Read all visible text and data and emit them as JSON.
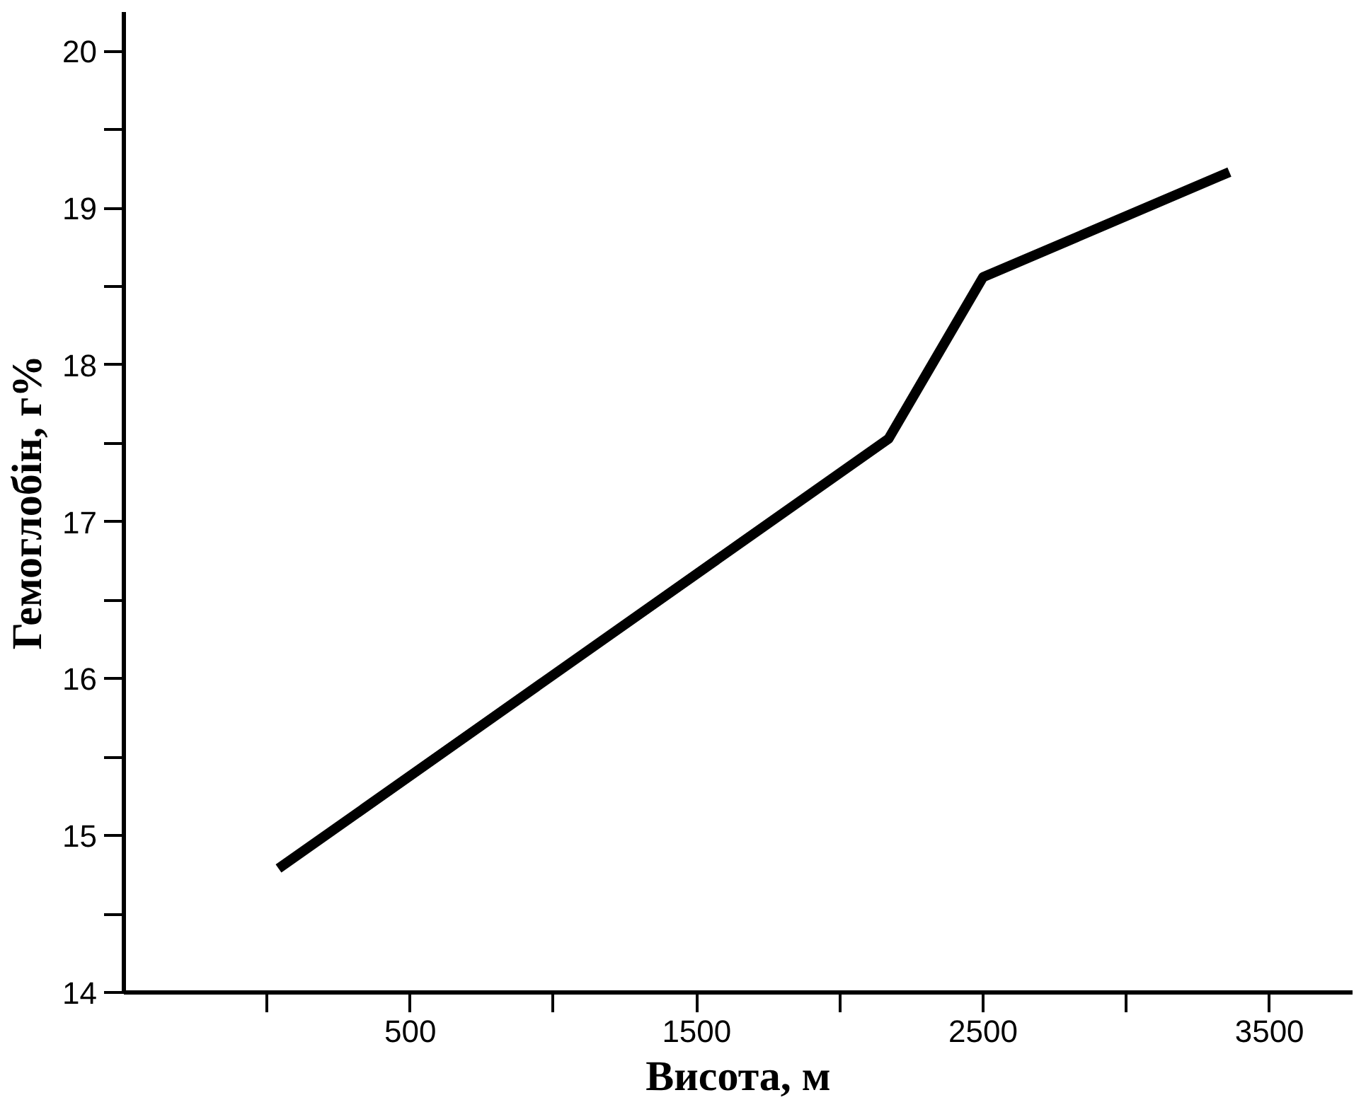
{
  "chart_data": {
    "type": "line",
    "xlabel": "Висота, м",
    "ylabel": "Гемоглобін, г%",
    "x": [
      40,
      2170,
      2500,
      3360
    ],
    "series": [
      {
        "color": "#000000",
        "values": [
          14.79,
          17.53,
          18.56,
          19.23
        ]
      }
    ],
    "xlim": [
      -500,
      3790
    ],
    "ylim": [
      14,
      20.25
    ],
    "xticks": [
      {
        "value": 0,
        "label": null
      },
      500,
      {
        "value": 1000,
        "label": null
      },
      1500,
      {
        "value": 2000,
        "label": null
      },
      2500,
      {
        "value": 3000,
        "label": null
      },
      3500
    ],
    "yticks": [
      14,
      {
        "value": 14.5,
        "label": null
      },
      15,
      {
        "value": 15.5,
        "label": null
      },
      16,
      {
        "value": 16.5,
        "label": null
      },
      17,
      {
        "value": 17.5,
        "label": null
      },
      18,
      {
        "value": 18.5,
        "label": null
      },
      19,
      {
        "value": 19.5,
        "label": null
      },
      20
    ],
    "grid": false,
    "marker": "none",
    "line_style": "solid"
  }
}
